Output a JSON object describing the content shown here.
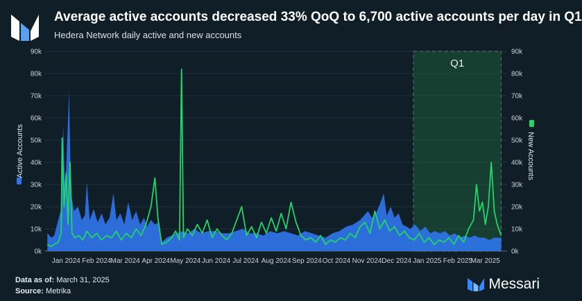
{
  "header": {
    "title": "Average active accounts decreased 33% QoQ to 6,700 active accounts per day in Q1",
    "subtitle": "Hedera Network daily active and new accounts"
  },
  "footer": {
    "data_as_of_label": "Data as of:",
    "data_as_of_value": "March 31, 2025",
    "source_label": "Source:",
    "source_value": "Metrika",
    "brand_name": "Messari"
  },
  "colors": {
    "background": "#0f1e27",
    "active_accounts": "#2f74e8",
    "new_accounts": "#22d46a",
    "highlight": "#1f5b3a"
  },
  "chart_data": {
    "type": "area",
    "x_range": [
      "2023-12-24",
      "2025-04-06"
    ],
    "y_left": {
      "label": "Active Accounts",
      "range": [
        0,
        90000
      ],
      "ticks": [
        "0k",
        "10k",
        "20k",
        "30k",
        "40k",
        "50k",
        "60k",
        "70k",
        "80k",
        "90k"
      ]
    },
    "y_right": {
      "label": "New Accounts",
      "range": [
        0,
        90000
      ],
      "ticks": [
        "0k",
        "10k",
        "20k",
        "30k",
        "40k",
        "50k",
        "60k",
        "70k",
        "80k",
        "90k"
      ]
    },
    "x_ticks": [
      "Jan 2024",
      "Feb 2024",
      "Mar 2024",
      "Apr 2024",
      "May 2024",
      "Jun 2024",
      "Jul 2024",
      "Aug 2024",
      "Sep 2024",
      "Oct 2024",
      "Nov 2024",
      "Dec 2024",
      "Jan 2025",
      "Feb 2025",
      "Mar 2025"
    ],
    "highlight": {
      "label": "Q1",
      "start": "2025-01-01",
      "end": "2025-03-31"
    },
    "grid": true,
    "series": [
      {
        "name": "Active Accounts",
        "style": "area",
        "axis": "left",
        "points": [
          [
            "2023-12-27",
            8000
          ],
          [
            "2023-12-31",
            6000
          ],
          [
            "2024-01-03",
            7000
          ],
          [
            "2024-01-07",
            14000
          ],
          [
            "2024-01-10",
            19000
          ],
          [
            "2024-01-12",
            57000
          ],
          [
            "2024-01-14",
            25000
          ],
          [
            "2024-01-16",
            48000
          ],
          [
            "2024-01-18",
            72000
          ],
          [
            "2024-01-20",
            26000
          ],
          [
            "2024-01-23",
            18000
          ],
          [
            "2024-01-27",
            20000
          ],
          [
            "2024-01-31",
            14000
          ],
          [
            "2024-02-03",
            16000
          ],
          [
            "2024-02-05",
            31000
          ],
          [
            "2024-02-08",
            14000
          ],
          [
            "2024-02-12",
            19000
          ],
          [
            "2024-02-16",
            13000
          ],
          [
            "2024-02-20",
            17000
          ],
          [
            "2024-02-24",
            12000
          ],
          [
            "2024-02-28",
            15000
          ],
          [
            "2024-03-03",
            26000
          ],
          [
            "2024-03-06",
            14000
          ],
          [
            "2024-03-10",
            17000
          ],
          [
            "2024-03-14",
            12000
          ],
          [
            "2024-03-18",
            22000
          ],
          [
            "2024-03-22",
            14000
          ],
          [
            "2024-03-26",
            18000
          ],
          [
            "2024-03-30",
            12000
          ],
          [
            "2024-04-03",
            15000
          ],
          [
            "2024-04-06",
            11000
          ],
          [
            "2024-04-10",
            14000
          ],
          [
            "2024-04-14",
            12000
          ],
          [
            "2024-04-18",
            13000
          ],
          [
            "2024-04-21",
            4000
          ],
          [
            "2024-04-26",
            6000
          ],
          [
            "2024-05-01",
            7000
          ],
          [
            "2024-05-06",
            8000
          ],
          [
            "2024-05-12",
            9000
          ],
          [
            "2024-05-18",
            8000
          ],
          [
            "2024-05-24",
            10000
          ],
          [
            "2024-05-31",
            8000
          ],
          [
            "2024-06-07",
            9000
          ],
          [
            "2024-06-14",
            9000
          ],
          [
            "2024-06-21",
            8000
          ],
          [
            "2024-06-28",
            8000
          ],
          [
            "2024-07-05",
            9000
          ],
          [
            "2024-07-12",
            10000
          ],
          [
            "2024-07-19",
            8000
          ],
          [
            "2024-07-26",
            8000
          ],
          [
            "2024-08-02",
            7000
          ],
          [
            "2024-08-09",
            9000
          ],
          [
            "2024-08-16",
            8000
          ],
          [
            "2024-08-23",
            9000
          ],
          [
            "2024-08-30",
            8000
          ],
          [
            "2024-09-06",
            7000
          ],
          [
            "2024-09-13",
            9000
          ],
          [
            "2024-09-20",
            8000
          ],
          [
            "2024-09-27",
            7000
          ],
          [
            "2024-10-04",
            6000
          ],
          [
            "2024-10-11",
            8000
          ],
          [
            "2024-10-18",
            9000
          ],
          [
            "2024-10-25",
            11000
          ],
          [
            "2024-11-01",
            12000
          ],
          [
            "2024-11-08",
            14000
          ],
          [
            "2024-11-12",
            16000
          ],
          [
            "2024-11-16",
            18000
          ],
          [
            "2024-11-20",
            15000
          ],
          [
            "2024-11-24",
            17000
          ],
          [
            "2024-11-28",
            21000
          ],
          [
            "2024-12-02",
            26000
          ],
          [
            "2024-12-05",
            16000
          ],
          [
            "2024-12-09",
            20000
          ],
          [
            "2024-12-13",
            15000
          ],
          [
            "2024-12-17",
            17000
          ],
          [
            "2024-12-21",
            12000
          ],
          [
            "2024-12-25",
            11000
          ],
          [
            "2024-12-29",
            10000
          ],
          [
            "2025-01-03",
            12000
          ],
          [
            "2025-01-08",
            9000
          ],
          [
            "2025-01-13",
            11000
          ],
          [
            "2025-01-18",
            8000
          ],
          [
            "2025-01-23",
            9000
          ],
          [
            "2025-01-28",
            8000
          ],
          [
            "2025-02-02",
            9000
          ],
          [
            "2025-02-07",
            7000
          ],
          [
            "2025-02-12",
            8000
          ],
          [
            "2025-02-17",
            6000
          ],
          [
            "2025-02-22",
            7000
          ],
          [
            "2025-02-27",
            6000
          ],
          [
            "2025-03-04",
            7000
          ],
          [
            "2025-03-09",
            6000
          ],
          [
            "2025-03-14",
            6000
          ],
          [
            "2025-03-19",
            5000
          ],
          [
            "2025-03-24",
            6000
          ],
          [
            "2025-03-31",
            6000
          ]
        ]
      },
      {
        "name": "New Accounts",
        "style": "line",
        "axis": "right",
        "points": [
          [
            "2023-12-27",
            3000
          ],
          [
            "2023-12-31",
            2000
          ],
          [
            "2024-01-03",
            3000
          ],
          [
            "2024-01-07",
            4000
          ],
          [
            "2024-01-10",
            8000
          ],
          [
            "2024-01-11",
            51000
          ],
          [
            "2024-01-13",
            20000
          ],
          [
            "2024-01-15",
            35000
          ],
          [
            "2024-01-17",
            12000
          ],
          [
            "2024-01-19",
            40000
          ],
          [
            "2024-01-21",
            8000
          ],
          [
            "2024-01-24",
            6000
          ],
          [
            "2024-01-28",
            7000
          ],
          [
            "2024-02-01",
            5000
          ],
          [
            "2024-02-05",
            9000
          ],
          [
            "2024-02-10",
            6000
          ],
          [
            "2024-02-15",
            8000
          ],
          [
            "2024-02-20",
            5000
          ],
          [
            "2024-02-25",
            7000
          ],
          [
            "2024-03-01",
            6000
          ],
          [
            "2024-03-06",
            9000
          ],
          [
            "2024-03-11",
            5000
          ],
          [
            "2024-03-16",
            8000
          ],
          [
            "2024-03-21",
            6000
          ],
          [
            "2024-03-26",
            10000
          ],
          [
            "2024-03-31",
            7000
          ],
          [
            "2024-04-05",
            12000
          ],
          [
            "2024-04-10",
            20000
          ],
          [
            "2024-04-14",
            33000
          ],
          [
            "2024-04-17",
            15000
          ],
          [
            "2024-04-21",
            3000
          ],
          [
            "2024-04-26",
            4000
          ],
          [
            "2024-05-01",
            6000
          ],
          [
            "2024-05-05",
            9000
          ],
          [
            "2024-05-09",
            5000
          ],
          [
            "2024-05-11",
            82000
          ],
          [
            "2024-05-13",
            6000
          ],
          [
            "2024-05-17",
            10000
          ],
          [
            "2024-05-22",
            7000
          ],
          [
            "2024-05-27",
            12000
          ],
          [
            "2024-06-01",
            8000
          ],
          [
            "2024-06-06",
            14000
          ],
          [
            "2024-06-11",
            6000
          ],
          [
            "2024-06-16",
            10000
          ],
          [
            "2024-06-21",
            7000
          ],
          [
            "2024-06-26",
            5000
          ],
          [
            "2024-07-01",
            8000
          ],
          [
            "2024-07-06",
            14000
          ],
          [
            "2024-07-11",
            20000
          ],
          [
            "2024-07-16",
            7000
          ],
          [
            "2024-07-21",
            11000
          ],
          [
            "2024-07-26",
            6000
          ],
          [
            "2024-07-31",
            13000
          ],
          [
            "2024-08-05",
            8000
          ],
          [
            "2024-08-10",
            15000
          ],
          [
            "2024-08-15",
            9000
          ],
          [
            "2024-08-20",
            17000
          ],
          [
            "2024-08-25",
            10000
          ],
          [
            "2024-08-30",
            22000
          ],
          [
            "2024-09-04",
            13000
          ],
          [
            "2024-09-09",
            7000
          ],
          [
            "2024-09-14",
            5000
          ],
          [
            "2024-09-19",
            6000
          ],
          [
            "2024-09-24",
            4000
          ],
          [
            "2024-09-29",
            7000
          ],
          [
            "2024-10-04",
            3000
          ],
          [
            "2024-10-09",
            5000
          ],
          [
            "2024-10-14",
            4000
          ],
          [
            "2024-10-19",
            6000
          ],
          [
            "2024-10-24",
            5000
          ],
          [
            "2024-10-29",
            8000
          ],
          [
            "2024-11-03",
            6000
          ],
          [
            "2024-11-08",
            11000
          ],
          [
            "2024-11-13",
            13000
          ],
          [
            "2024-11-18",
            8000
          ],
          [
            "2024-11-23",
            18000
          ],
          [
            "2024-11-28",
            10000
          ],
          [
            "2024-12-03",
            14000
          ],
          [
            "2024-12-08",
            9000
          ],
          [
            "2024-12-13",
            11000
          ],
          [
            "2024-12-18",
            7000
          ],
          [
            "2024-12-23",
            9000
          ],
          [
            "2024-12-28",
            6000
          ],
          [
            "2025-01-02",
            5000
          ],
          [
            "2025-01-07",
            8000
          ],
          [
            "2025-01-12",
            4000
          ],
          [
            "2025-01-17",
            6000
          ],
          [
            "2025-01-22",
            3000
          ],
          [
            "2025-01-27",
            5000
          ],
          [
            "2025-02-01",
            4000
          ],
          [
            "2025-02-06",
            6000
          ],
          [
            "2025-02-11",
            3000
          ],
          [
            "2025-02-16",
            7000
          ],
          [
            "2025-02-21",
            4000
          ],
          [
            "2025-02-26",
            10000
          ],
          [
            "2025-03-03",
            14000
          ],
          [
            "2025-03-06",
            30000
          ],
          [
            "2025-03-09",
            18000
          ],
          [
            "2025-03-12",
            22000
          ],
          [
            "2025-03-15",
            12000
          ],
          [
            "2025-03-18",
            20000
          ],
          [
            "2025-03-21",
            40000
          ],
          [
            "2025-03-24",
            18000
          ],
          [
            "2025-03-27",
            12000
          ],
          [
            "2025-03-31",
            7000
          ]
        ]
      }
    ]
  }
}
